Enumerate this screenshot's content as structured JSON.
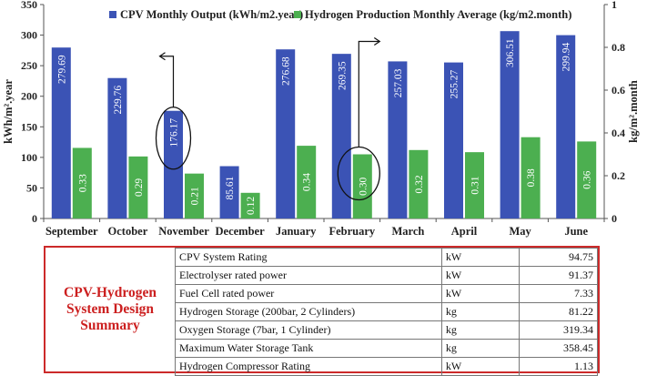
{
  "chart_data": {
    "type": "bar",
    "categories": [
      "September",
      "October",
      "November",
      "December",
      "January",
      "February",
      "March",
      "April",
      "May",
      "June"
    ],
    "series": [
      {
        "name": "CPV Monthly Output (kWh/m2.year)",
        "axis": "left",
        "color": "#3b53b5",
        "values": [
          279.69,
          229.76,
          176.17,
          85.61,
          276.68,
          269.35,
          257.03,
          255.27,
          306.51,
          299.94
        ],
        "labels": [
          "279.69",
          "229.76",
          "176.17",
          "85.61",
          "276.68",
          "269.35",
          "257.03",
          "255.27",
          "306.51",
          "299.94"
        ]
      },
      {
        "name": "Hydrogen Production Monthly Average (kg/m2.month)",
        "axis": "right",
        "color": "#4caf50",
        "values": [
          0.33,
          0.29,
          0.21,
          0.12,
          0.34,
          0.3,
          0.32,
          0.31,
          0.38,
          0.36
        ],
        "labels": [
          "0.33",
          "0.29",
          "0.21",
          "0.12",
          "0.34",
          "0.30",
          "0.32",
          "0.31",
          "0.38",
          "0.36"
        ]
      }
    ],
    "y_left": {
      "label": "kWh/m².year",
      "min": 0,
      "max": 350,
      "ticks": [
        "0",
        "50",
        "100",
        "150",
        "200",
        "250",
        "300",
        "350"
      ]
    },
    "y_right": {
      "label": "kg/m².month",
      "min": 0,
      "max": 1,
      "ticks": [
        "0",
        "0.2",
        "0.4",
        "0.6",
        "0.8",
        "1"
      ]
    },
    "legend_placement": "top",
    "grid": false,
    "annotations": [
      {
        "type": "circle",
        "category": "November",
        "series": 0
      },
      {
        "type": "circle",
        "category": "February",
        "series": 1
      }
    ]
  },
  "summary": {
    "title_lines": [
      "CPV-Hydrogen",
      "System Design",
      "Summary"
    ],
    "rows": [
      {
        "label": "CPV System Rating",
        "unit": "kW",
        "value": "94.75"
      },
      {
        "label": "Electrolyser rated power",
        "unit": "kW",
        "value": "91.37"
      },
      {
        "label": "Fuel Cell rated power",
        "unit": "kW",
        "value": "7.33"
      },
      {
        "label": "Hydrogen Storage (200bar, 2 Cylinders)",
        "unit": "kg",
        "value": "81.22"
      },
      {
        "label": "Oxygen Storage (7bar, 1 Cylinder)",
        "unit": "kg",
        "value": "319.34"
      },
      {
        "label": "Maximum Water Storage Tank",
        "unit": "kg",
        "value": "358.45"
      },
      {
        "label": "Hydrogen Compressor Rating",
        "unit": "kW",
        "value": "1.13"
      }
    ]
  }
}
